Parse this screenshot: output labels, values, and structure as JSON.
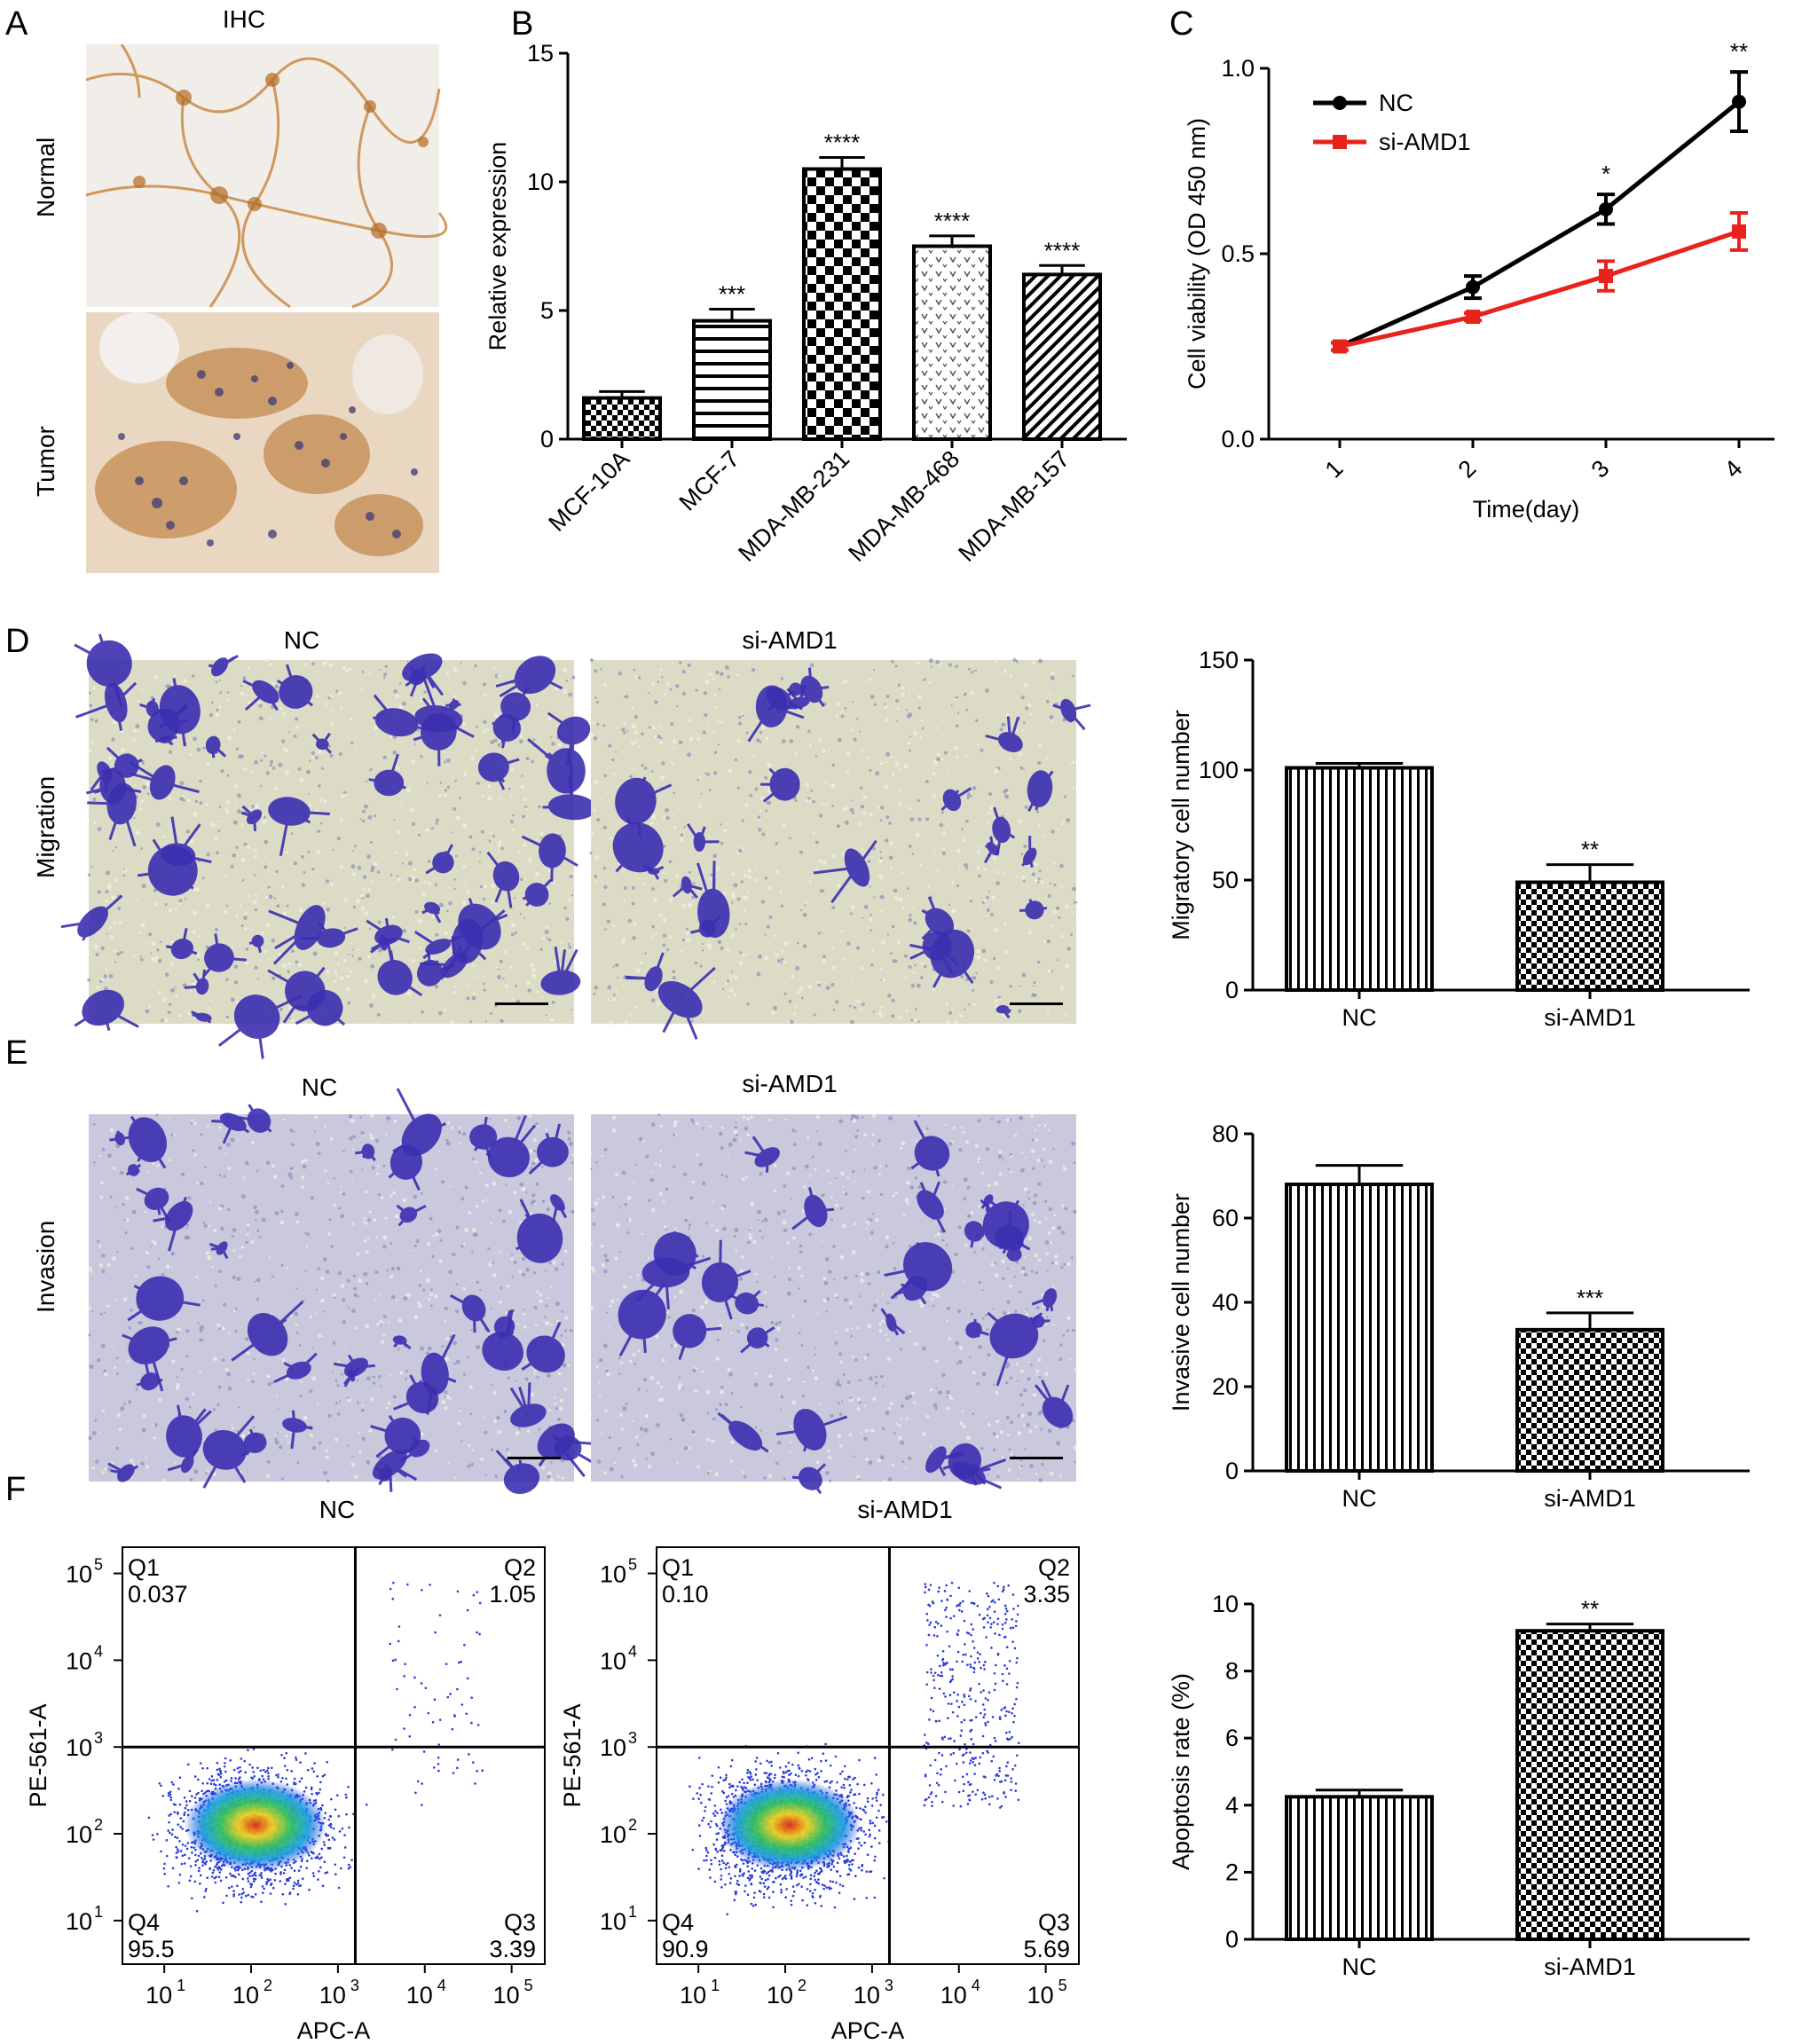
{
  "panel_a": {
    "letter": "A",
    "title": "IHC",
    "rows": [
      "Normal",
      "Tumor"
    ]
  },
  "panel_b": {
    "letter": "B"
  },
  "panel_c": {
    "letter": "C"
  },
  "panel_d": {
    "letter": "D",
    "row_label": "Migration",
    "col_labels": [
      "NC",
      "si-AMD1"
    ]
  },
  "panel_e": {
    "letter": "E",
    "row_label": "Invasion",
    "col_labels": [
      "NC",
      "si-AMD1"
    ]
  },
  "panel_f": {
    "letter": "F",
    "col_labels": [
      "NC",
      "si-AMD1"
    ],
    "flow_nc": {
      "q1": "Q1",
      "q1v": "0.037",
      "q2": "Q2",
      "q2v": "1.05",
      "q3": "Q3",
      "q3v": "3.39",
      "q4": "Q4",
      "q4v": "95.5"
    },
    "flow_si": {
      "q1": "Q1",
      "q1v": "0.10",
      "q2": "Q2",
      "q2v": "3.35",
      "q3": "Q3",
      "q3v": "5.69",
      "q4": "Q4",
      "q4v": "90.9"
    },
    "xlabel": "APC-A",
    "ylabel": "PE-561-A"
  },
  "colors": {
    "nc_line": "#000000",
    "si_line": "#e8231c",
    "stain_blue": "#3b2fb0",
    "ihc_brown": "#b8742a"
  },
  "chart_data": [
    {
      "id": "B",
      "type": "bar",
      "ylabel": "Relative expression",
      "categories": [
        "MCF-10A",
        "MCF-7",
        "MDA-MB-231",
        "MDA-MB-468",
        "MDA-MB-157"
      ],
      "values": [
        1.6,
        4.6,
        10.5,
        7.5,
        6.4
      ],
      "errors": [
        0.25,
        0.45,
        0.45,
        0.4,
        0.35
      ],
      "significance": [
        "",
        "***",
        "****",
        "****",
        "****"
      ],
      "ylim": [
        0,
        15
      ],
      "yticks": [
        0,
        5,
        10,
        15
      ]
    },
    {
      "id": "C",
      "type": "line",
      "xlabel": "Time(day)",
      "ylabel": "Cell viability (OD 450 nm)",
      "x": [
        1,
        2,
        3,
        4
      ],
      "series": [
        {
          "name": "NC",
          "values": [
            0.25,
            0.41,
            0.62,
            0.91
          ],
          "errors": [
            0.01,
            0.03,
            0.04,
            0.08
          ]
        },
        {
          "name": "si-AMD1",
          "values": [
            0.25,
            0.33,
            0.44,
            0.56
          ],
          "errors": [
            0.01,
            0.01,
            0.04,
            0.05
          ]
        }
      ],
      "significance": [
        "",
        "",
        "*",
        "**"
      ],
      "ylim": [
        0.0,
        1.0
      ],
      "yticks": [
        "0.0",
        "0.5",
        "1.0"
      ],
      "xticks": [
        "1",
        "2",
        "3",
        "4"
      ]
    },
    {
      "id": "D",
      "type": "bar",
      "ylabel": "Migratory cell number",
      "categories": [
        "NC",
        "si-AMD1"
      ],
      "values": [
        101,
        49
      ],
      "errors": [
        2,
        8
      ],
      "significance": [
        "",
        "**"
      ],
      "ylim": [
        0,
        150
      ],
      "yticks": [
        0,
        50,
        100,
        150
      ]
    },
    {
      "id": "E",
      "type": "bar",
      "ylabel": "Invasive cell number",
      "categories": [
        "NC",
        "si-AMD1"
      ],
      "values": [
        68,
        33.5
      ],
      "errors": [
        4.5,
        4
      ],
      "significance": [
        "",
        "***"
      ],
      "ylim": [
        0,
        80
      ],
      "yticks": [
        0,
        20,
        40,
        60,
        80
      ]
    },
    {
      "id": "F",
      "type": "bar",
      "ylabel": "Apoptosis rate (%)",
      "categories": [
        "NC",
        "si-AMD1"
      ],
      "values": [
        4.25,
        9.2
      ],
      "errors": [
        0.2,
        0.2
      ],
      "significance": [
        "",
        "**"
      ],
      "ylim": [
        0,
        10
      ],
      "yticks": [
        0,
        2,
        4,
        6,
        8,
        10
      ]
    }
  ]
}
